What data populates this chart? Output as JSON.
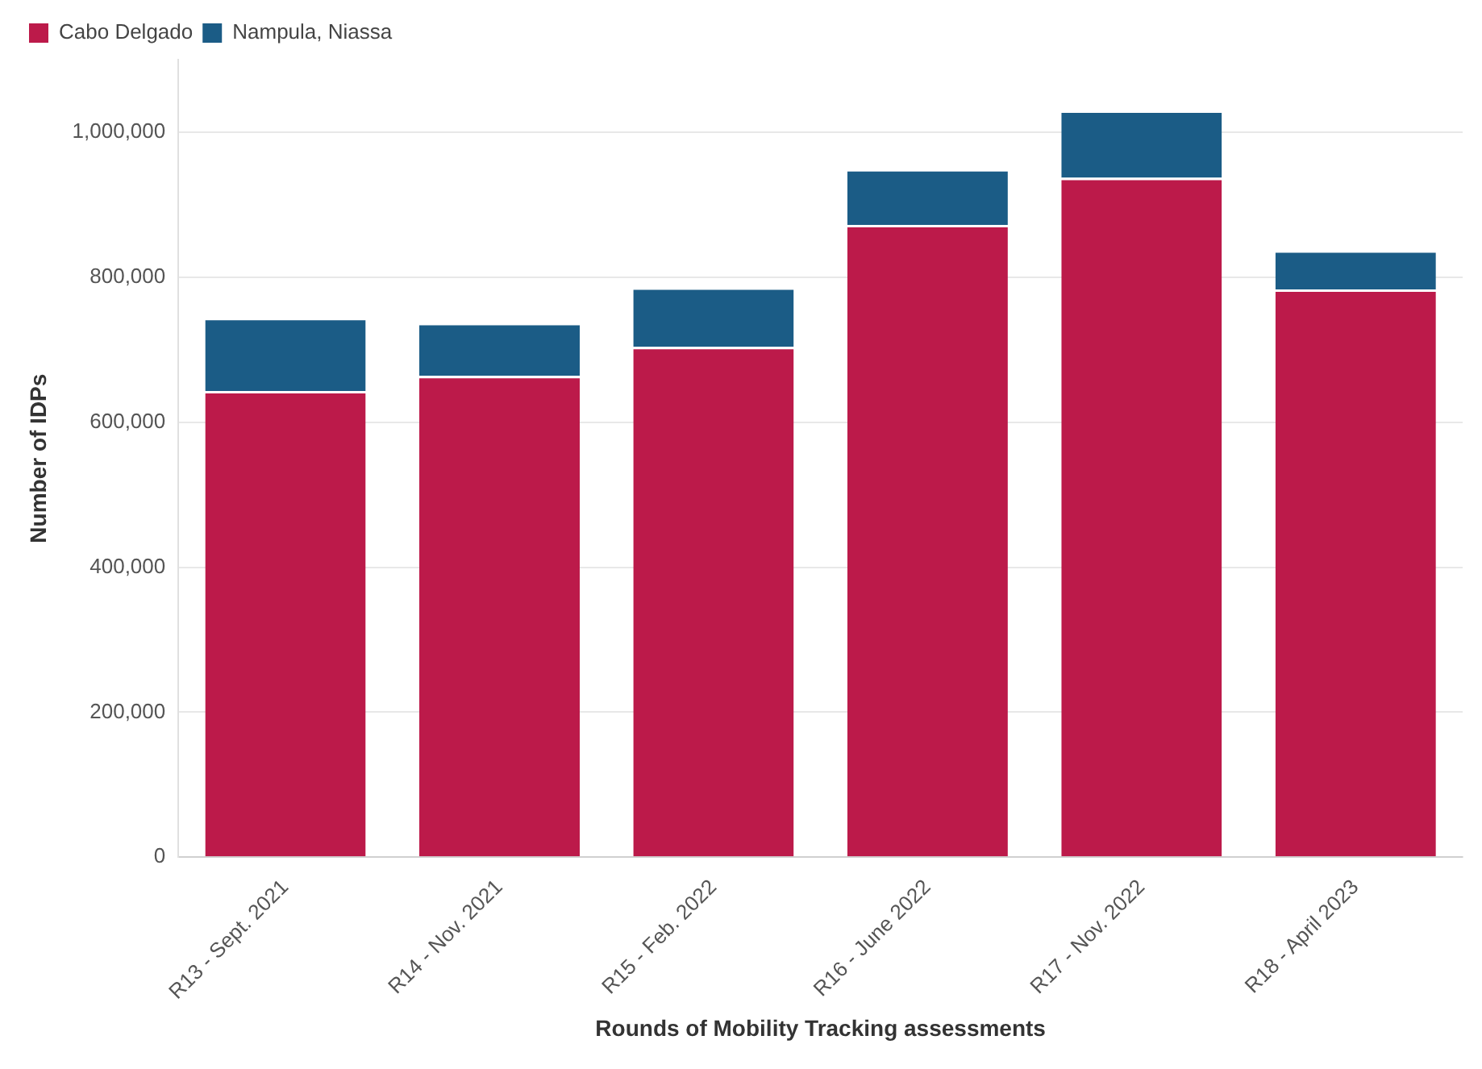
{
  "chart_data": {
    "type": "bar",
    "stacked": true,
    "xlabel": "Rounds of Mobility Tracking assessments",
    "ylabel": "Number of IDPs",
    "categories": [
      "R13 - Sept. 2021",
      "R14 - Nov. 2021",
      "R15 - Feb. 2022",
      "R16 - June 2022",
      "R17 - Nov. 2022",
      "R18 - April 2023"
    ],
    "series": [
      {
        "name": "Cabo Delgado",
        "color": "#bc1a4a",
        "values": [
          643000,
          664000,
          704000,
          872000,
          937000,
          783000
        ]
      },
      {
        "name": "Nampula, Niassa",
        "color": "#1b5c86",
        "values": [
          101000,
          73000,
          82000,
          77000,
          93000,
          54000
        ]
      }
    ],
    "ylim": [
      0,
      1100000
    ],
    "yticks": [
      0,
      {
        "value": 200000,
        "label": "200,000"
      },
      {
        "value": 400000,
        "label": "400,000"
      },
      {
        "value": 600000,
        "label": "600,000"
      },
      {
        "value": 800000,
        "label": "800,000"
      },
      {
        "value": 1000000,
        "label": "1,000,000"
      }
    ],
    "grid": "y",
    "legend": "top left"
  }
}
